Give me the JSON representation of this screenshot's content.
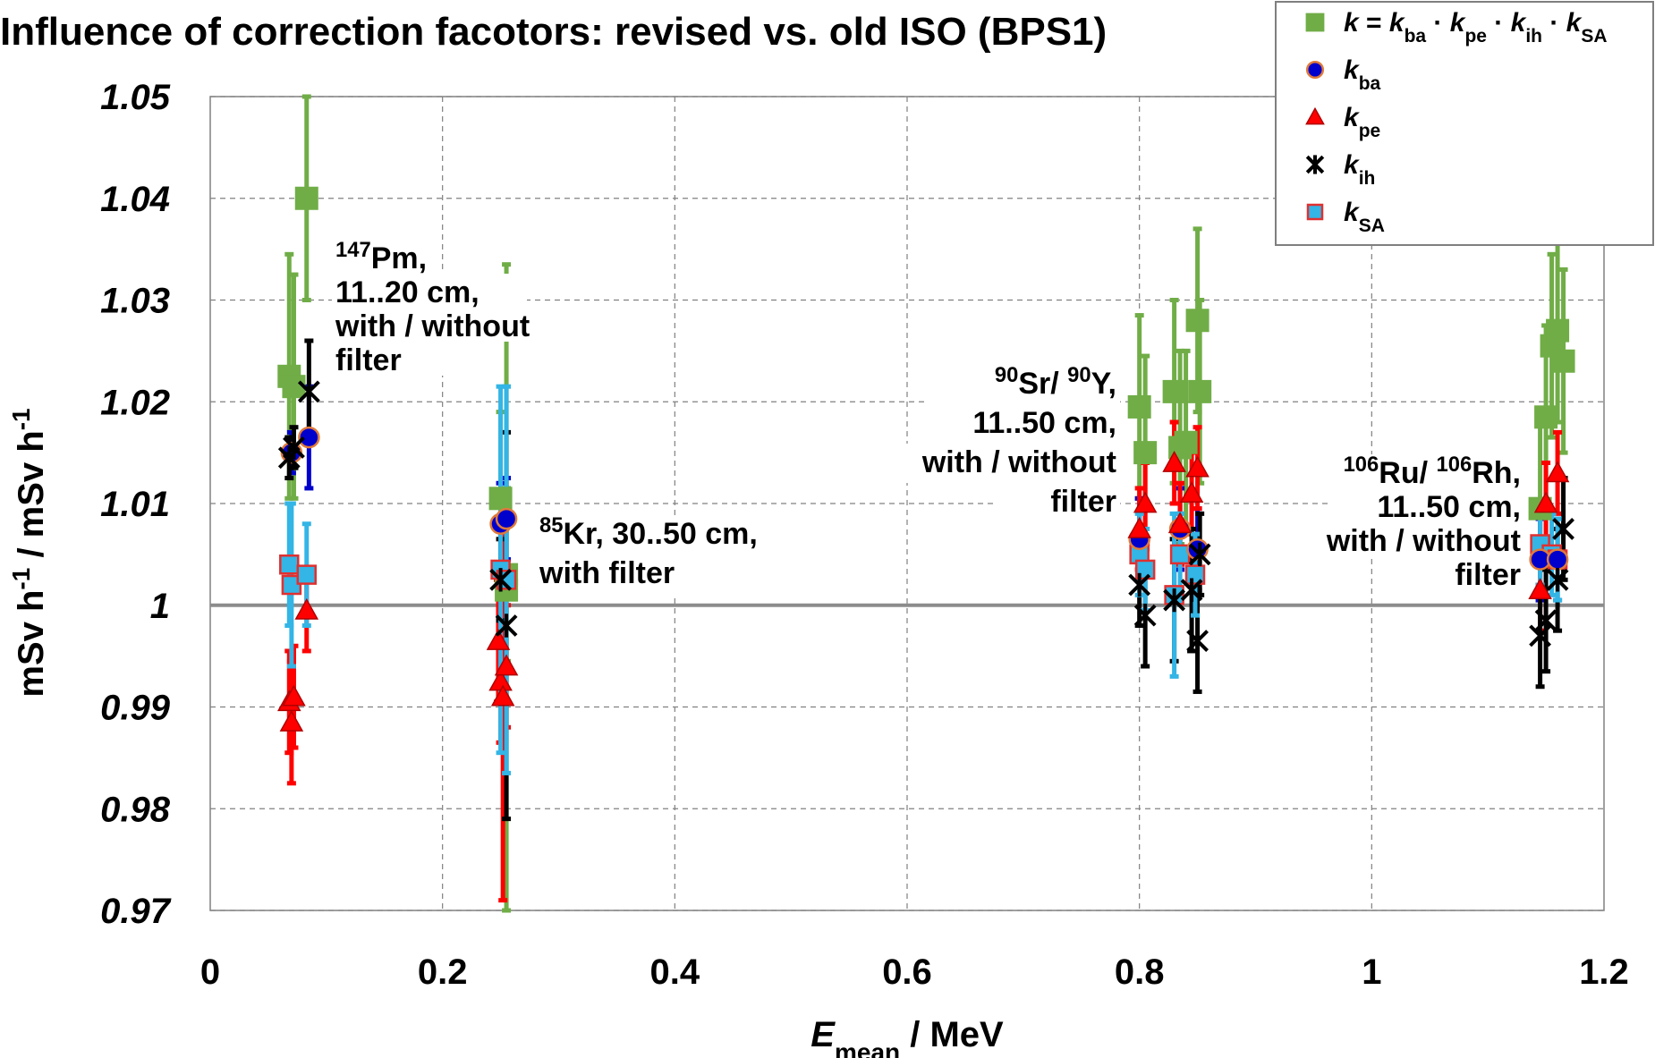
{
  "chart_data": {
    "type": "scatter",
    "title": "Influence of correction facotors: revised vs. old ISO (BPS1)",
    "xlabel": {
      "main": "E",
      "sub": "mean",
      "rest": " / MeV"
    },
    "ylabel": {
      "part1": "mSv h",
      "sup1": "-1",
      "sep": "  /  ",
      "part2": "mSv h",
      "sup2": "-1"
    },
    "xlim": [
      0,
      1.2
    ],
    "ylim": [
      0.97,
      1.05
    ],
    "x_ticks": [
      "0",
      "0.2",
      "0.4",
      "0.6",
      "0.8",
      "1",
      "1.2"
    ],
    "y_ticks": [
      "0.97",
      "0.98",
      "0.99",
      "1",
      "1.01",
      "1.02",
      "1.03",
      "1.04",
      "1.05"
    ],
    "grid": true,
    "reference_line": 1.0,
    "legend_position": "top-right",
    "legend": [
      {
        "series": "k",
        "text": "k = k_ba · k_pe · k_ih · k_SA"
      },
      {
        "series": "kba",
        "text": "k_ba"
      },
      {
        "series": "kpe",
        "text": "k_pe"
      },
      {
        "series": "kih",
        "text": "k_ih"
      },
      {
        "series": "kSA",
        "text": "k_SA"
      }
    ],
    "series": [
      {
        "name": "k = k_ba · k_pe · k_ih · k_SA",
        "key": "k",
        "marker": "square",
        "color": "#70ad47",
        "points": [
          {
            "x": 0.068,
            "y": 1.0225,
            "err": 0.012
          },
          {
            "x": 0.072,
            "y": 1.0215,
            "err": 0.011
          },
          {
            "x": 0.083,
            "y": 1.04,
            "err": 0.01
          },
          {
            "x": 0.25,
            "y": 1.0105,
            "err": 0.0085
          },
          {
            "x": 0.255,
            "y": 1.003,
            "err": 0.0085
          },
          {
            "x": 0.255,
            "y": 1.0015,
            "err": 0.032
          },
          {
            "x": 0.8,
            "y": 1.0195,
            "err": 0.009
          },
          {
            "x": 0.805,
            "y": 1.015,
            "err": 0.0095
          },
          {
            "x": 0.83,
            "y": 1.021,
            "err": 0.009
          },
          {
            "x": 0.835,
            "y": 1.0155,
            "err": 0.0095
          },
          {
            "x": 0.84,
            "y": 1.016,
            "err": 0.009
          },
          {
            "x": 0.85,
            "y": 1.028,
            "err": 0.009
          },
          {
            "x": 0.852,
            "y": 1.021,
            "err": 0.009
          },
          {
            "x": 1.145,
            "y": 1.0095,
            "err": 0.009
          },
          {
            "x": 1.15,
            "y": 1.0185,
            "err": 0.009
          },
          {
            "x": 1.155,
            "y": 1.0255,
            "err": 0.009
          },
          {
            "x": 1.16,
            "y": 1.027,
            "err": 0.009
          },
          {
            "x": 1.165,
            "y": 1.024,
            "err": 0.009
          }
        ]
      },
      {
        "name": "k_ba",
        "key": "kba",
        "marker": "circle",
        "color": "#0000cc",
        "points": [
          {
            "x": 0.07,
            "y": 1.015,
            "err": 0.002
          },
          {
            "x": 0.085,
            "y": 1.0165,
            "err": 0.005
          },
          {
            "x": 0.25,
            "y": 1.008,
            "err": 0.004
          },
          {
            "x": 0.255,
            "y": 1.0085,
            "err": 0.004
          },
          {
            "x": 0.8,
            "y": 1.0065,
            "err": 0.004
          },
          {
            "x": 0.835,
            "y": 1.0075,
            "err": 0.004
          },
          {
            "x": 0.85,
            "y": 1.0055,
            "err": 0.004
          },
          {
            "x": 1.145,
            "y": 1.0045,
            "err": 0.004
          },
          {
            "x": 1.16,
            "y": 1.0045,
            "err": 0.004
          }
        ]
      },
      {
        "name": "k_pe",
        "key": "kpe",
        "marker": "triangle",
        "color": "#ff0000",
        "points": [
          {
            "x": 0.068,
            "y": 0.9905,
            "err": 0.005
          },
          {
            "x": 0.07,
            "y": 0.9885,
            "err": 0.006
          },
          {
            "x": 0.072,
            "y": 0.991,
            "err": 0.005
          },
          {
            "x": 0.083,
            "y": 0.9995,
            "err": 0.004
          },
          {
            "x": 0.248,
            "y": 0.9965,
            "err": 0.006
          },
          {
            "x": 0.25,
            "y": 0.9925,
            "err": 0.006
          },
          {
            "x": 0.252,
            "y": 0.991,
            "err": 0.02
          },
          {
            "x": 0.255,
            "y": 0.994,
            "err": 0.006
          },
          {
            "x": 0.8,
            "y": 1.0075,
            "err": 0.004
          },
          {
            "x": 0.805,
            "y": 1.01,
            "err": 0.004
          },
          {
            "x": 0.83,
            "y": 1.014,
            "err": 0.004
          },
          {
            "x": 0.835,
            "y": 1.008,
            "err": 0.004
          },
          {
            "x": 0.845,
            "y": 1.011,
            "err": 0.004
          },
          {
            "x": 0.85,
            "y": 1.0135,
            "err": 0.004
          },
          {
            "x": 1.145,
            "y": 1.0015,
            "err": 0.004
          },
          {
            "x": 1.15,
            "y": 1.01,
            "err": 0.004
          },
          {
            "x": 1.16,
            "y": 1.013,
            "err": 0.004
          }
        ]
      },
      {
        "name": "k_ih",
        "key": "kih",
        "marker": "star",
        "color": "#000000",
        "points": [
          {
            "x": 0.068,
            "y": 1.0145,
            "err": 0.002
          },
          {
            "x": 0.072,
            "y": 1.0155,
            "err": 0.002
          },
          {
            "x": 0.085,
            "y": 1.021,
            "err": 0.005
          },
          {
            "x": 0.25,
            "y": 1.0025,
            "err": 0.004
          },
          {
            "x": 0.255,
            "y": 0.998,
            "err": 0.019
          },
          {
            "x": 0.8,
            "y": 1.002,
            "err": 0.004
          },
          {
            "x": 0.805,
            "y": 0.999,
            "err": 0.005
          },
          {
            "x": 0.83,
            "y": 1.0005,
            "err": 0.006
          },
          {
            "x": 0.845,
            "y": 1.0015,
            "err": 0.006
          },
          {
            "x": 0.85,
            "y": 0.9965,
            "err": 0.005
          },
          {
            "x": 0.852,
            "y": 1.005,
            "err": 0.004
          },
          {
            "x": 1.145,
            "y": 0.997,
            "err": 0.005
          },
          {
            "x": 1.15,
            "y": 0.9985,
            "err": 0.005
          },
          {
            "x": 1.16,
            "y": 1.0025,
            "err": 0.005
          },
          {
            "x": 1.165,
            "y": 1.0075,
            "err": 0.005
          }
        ]
      },
      {
        "name": "k_SA",
        "key": "kSA",
        "marker": "square",
        "color": "#33b5e5",
        "points": [
          {
            "x": 0.068,
            "y": 1.004,
            "err": 0.006
          },
          {
            "x": 0.07,
            "y": 1.002,
            "err": 0.008
          },
          {
            "x": 0.083,
            "y": 1.003,
            "err": 0.005
          },
          {
            "x": 0.25,
            "y": 1.0035,
            "err": 0.018
          },
          {
            "x": 0.255,
            "y": 1.0025,
            "err": 0.019
          },
          {
            "x": 0.8,
            "y": 1.005,
            "err": 0.004
          },
          {
            "x": 0.805,
            "y": 1.0035,
            "err": 0.004
          },
          {
            "x": 0.83,
            "y": 1.001,
            "err": 0.008
          },
          {
            "x": 0.835,
            "y": 1.005,
            "err": 0.004
          },
          {
            "x": 0.848,
            "y": 1.003,
            "err": 0.004
          },
          {
            "x": 1.145,
            "y": 1.006,
            "err": 0.004
          },
          {
            "x": 1.155,
            "y": 1.005,
            "err": 0.004
          },
          {
            "x": 1.16,
            "y": 1.0045,
            "err": 0.004
          }
        ]
      }
    ],
    "annotations": [
      {
        "lines": [
          [
            "^147",
            "Pm,"
          ],
          [
            "",
            "11..20 cm,"
          ],
          [
            "",
            "with / without"
          ],
          [
            "",
            "filter"
          ]
        ]
      },
      {
        "lines": [
          [
            "^85",
            "Kr, 30..50 cm,"
          ],
          [
            "",
            "with filter"
          ]
        ]
      },
      {
        "lines": [
          [
            "^90",
            "Sr/ "
          ],
          [
            "",
            "11..50 cm,"
          ],
          [
            "",
            "with / without"
          ],
          [
            "",
            "filter"
          ]
        ],
        "line1b": [
          "^90",
          "Y,"
        ]
      },
      {
        "lines": [
          [
            "^106",
            "Ru/ "
          ],
          [
            "",
            "11..50 cm,"
          ],
          [
            "",
            "with / without"
          ],
          [
            "",
            "filter"
          ]
        ],
        "line1b": [
          "^106",
          "Rh,"
        ]
      }
    ]
  }
}
